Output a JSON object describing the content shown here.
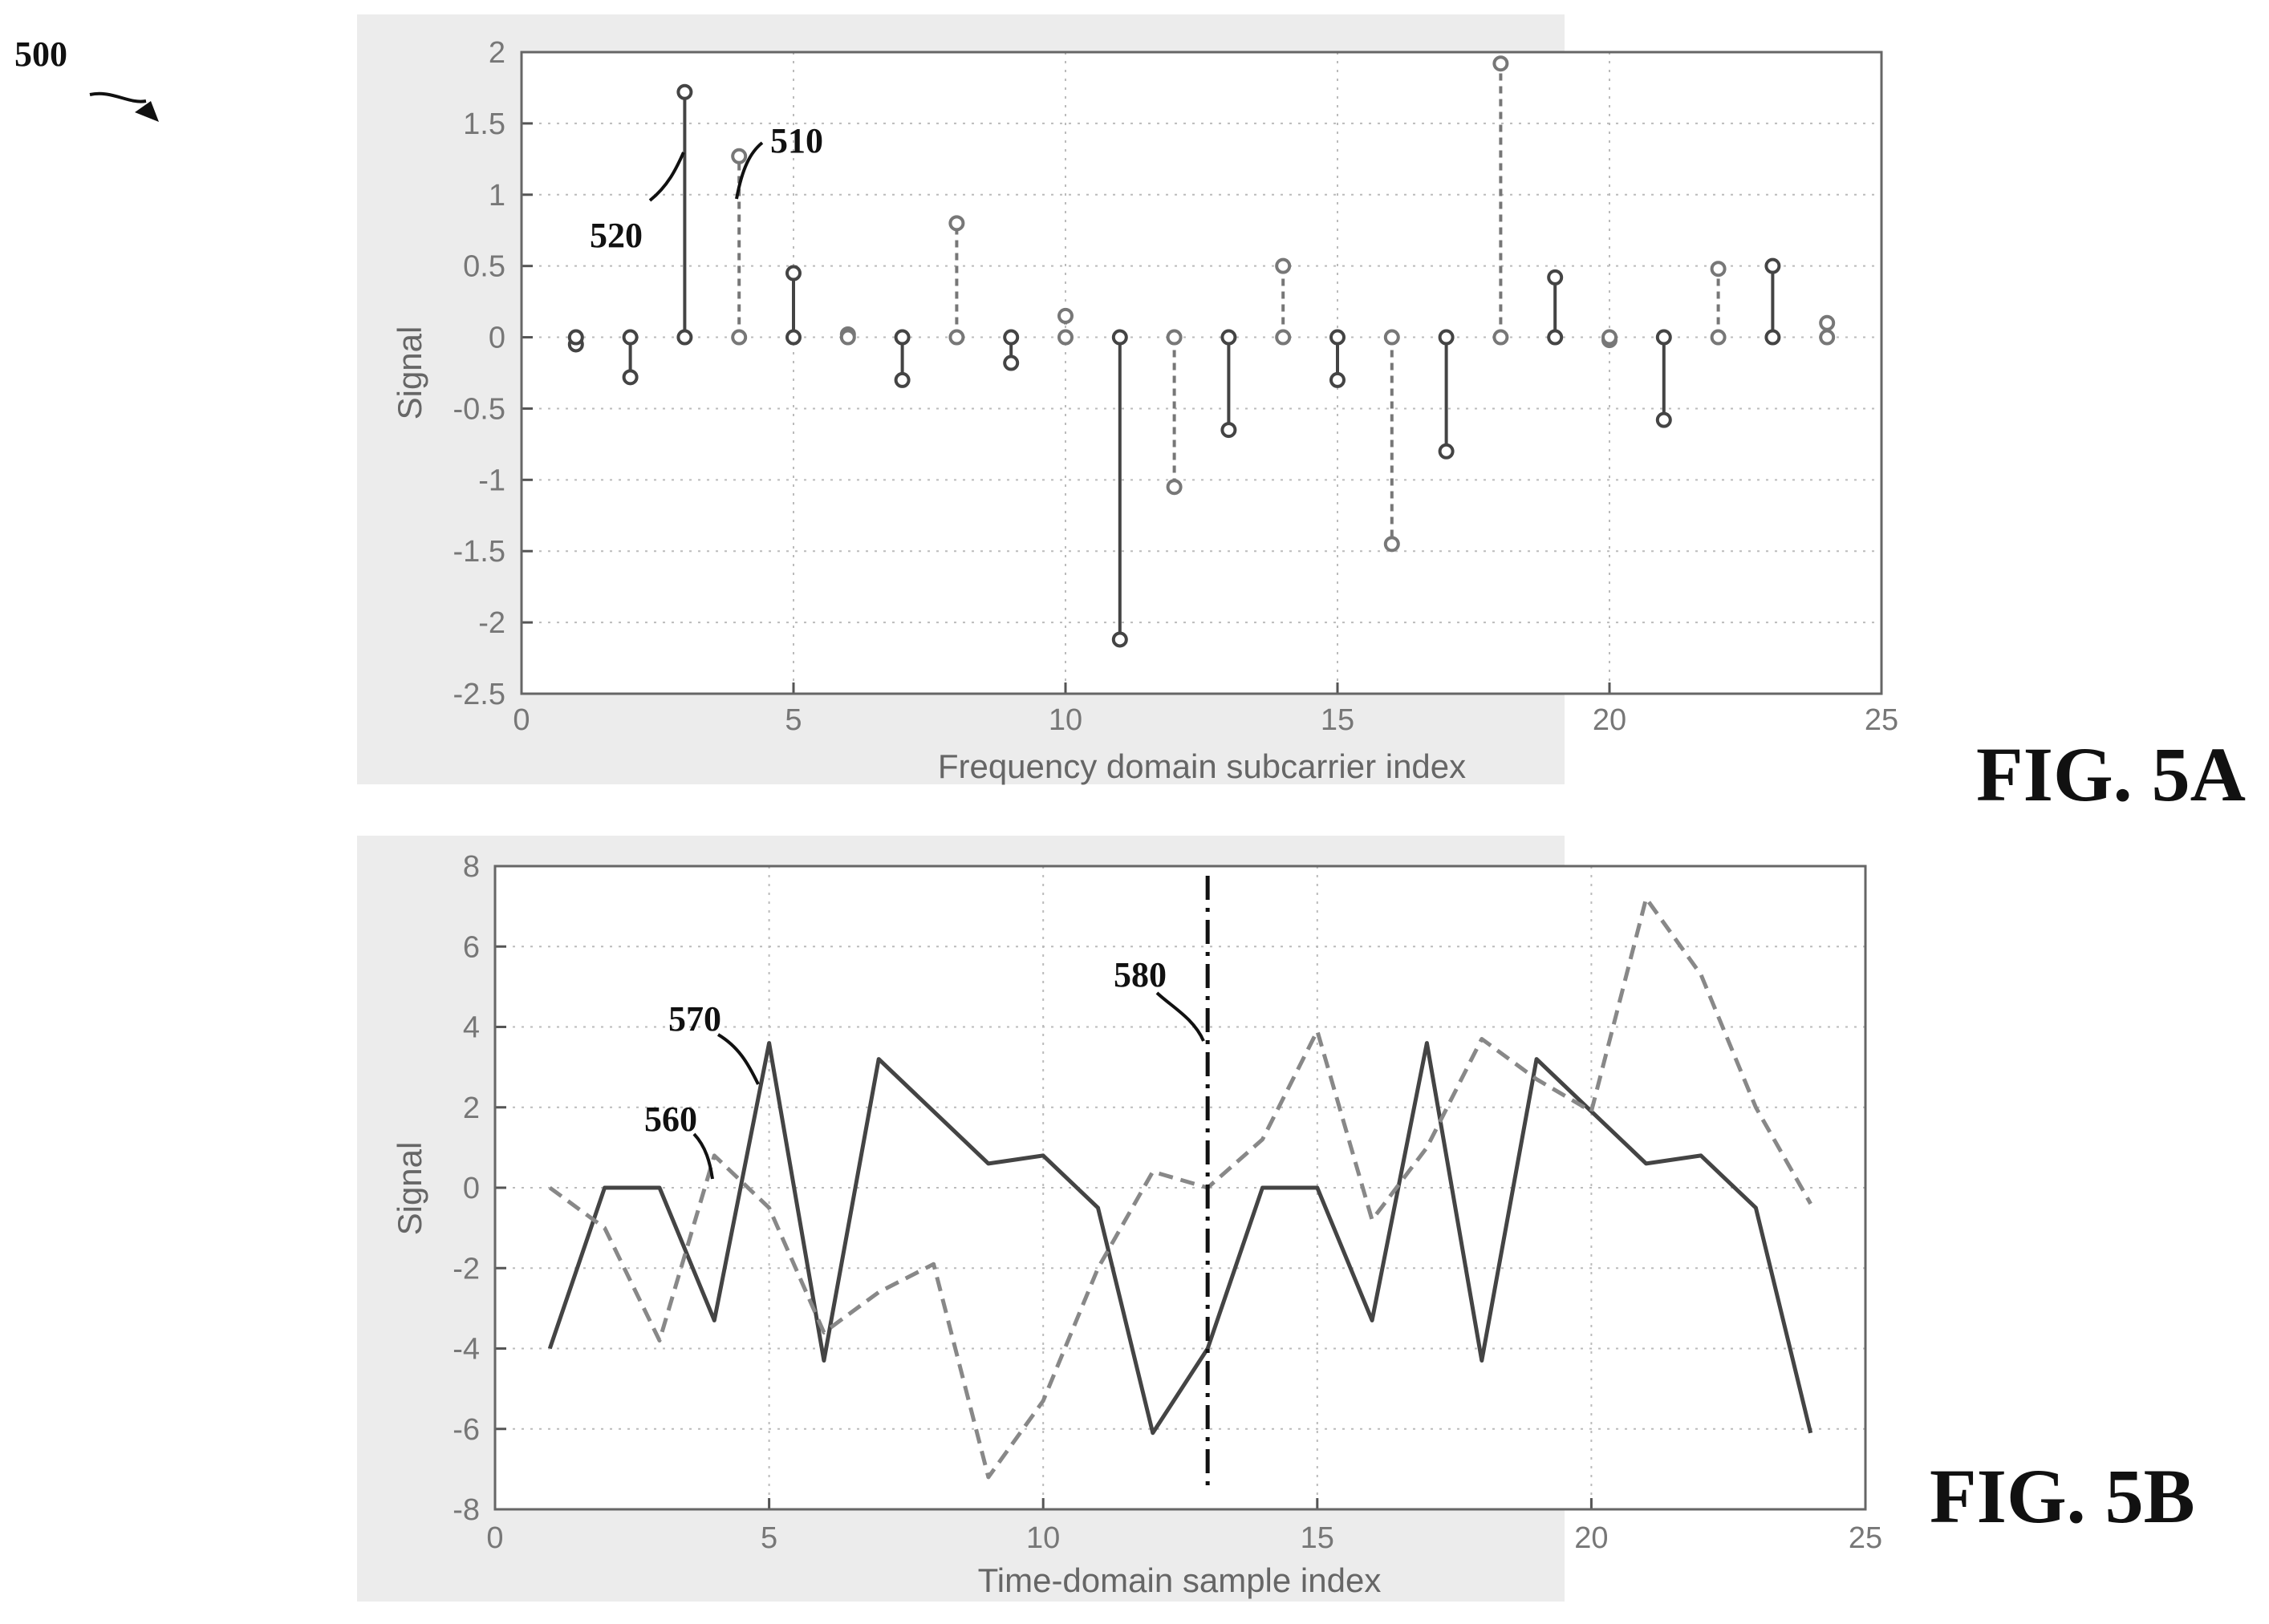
{
  "figure_ref": "500",
  "chart_data": [
    {
      "type": "stem",
      "fig_label": "FIG. 5A",
      "xlabel": "Frequency domain subcarrier index",
      "ylabel": "Signal",
      "xlim": [
        0,
        25
      ],
      "ylim": [
        -2.5,
        2
      ],
      "xticks": [
        "0",
        "5",
        "10",
        "15",
        "20",
        "25"
      ],
      "yticks": [
        "2",
        "1.5",
        "1",
        "0.5",
        "0",
        "-0.5",
        "-1",
        "-1.5",
        "-2",
        "-2.5"
      ],
      "grid": true,
      "series": [
        {
          "ref": "520",
          "points": [
            [
              1,
              -0.05
            ],
            [
              2,
              -0.28
            ],
            [
              3,
              1.72
            ],
            [
              5,
              0.45
            ],
            [
              7,
              -0.3
            ],
            [
              9,
              -0.18
            ],
            [
              11,
              -2.12
            ],
            [
              13,
              -0.65
            ],
            [
              15,
              -0.3
            ],
            [
              17,
              -0.8
            ],
            [
              19,
              0.42
            ],
            [
              21,
              -0.58
            ],
            [
              23,
              0.5
            ]
          ]
        },
        {
          "ref": "510",
          "points": [
            [
              4,
              1.27
            ],
            [
              6,
              0.02
            ],
            [
              8,
              0.8
            ],
            [
              10,
              0.15
            ],
            [
              12,
              -1.05
            ],
            [
              14,
              0.5
            ],
            [
              16,
              -1.45
            ],
            [
              18,
              1.92
            ],
            [
              20,
              -0.02
            ],
            [
              22,
              0.48
            ],
            [
              24,
              0.1
            ]
          ]
        }
      ],
      "annotations": [
        {
          "text": "520",
          "series": 0
        },
        {
          "text": "510",
          "series": 1
        }
      ]
    },
    {
      "type": "line",
      "fig_label": "FIG. 5B",
      "xlabel": "Time-domain sample index",
      "ylabel": "Signal",
      "xlim": [
        0,
        25
      ],
      "ylim": [
        -8,
        8
      ],
      "xticks": [
        "0",
        "5",
        "10",
        "15",
        "20",
        "25"
      ],
      "yticks": [
        "8",
        "6",
        "4",
        "2",
        "0",
        "-2",
        "-4",
        "-6",
        "-8"
      ],
      "grid": true,
      "x": [
        1,
        2,
        3,
        4,
        5,
        6,
        7,
        8,
        9,
        10,
        11,
        12,
        13,
        14,
        15,
        16,
        17,
        18,
        19,
        20,
        21,
        22,
        23,
        24
      ],
      "series": [
        {
          "ref": "570",
          "values": [
            -4,
            0,
            0,
            -3.3,
            3.6,
            -4.3,
            3.2,
            1.9,
            0.6,
            0.8,
            -0.5,
            -6.1,
            -4,
            0,
            0,
            -3.3,
            3.6,
            -4.3,
            3.2,
            1.9,
            0.6,
            0.8,
            -0.5,
            -6.1
          ]
        },
        {
          "ref": "560",
          "values": [
            0,
            -1,
            -3.8,
            0.8,
            -0.5,
            -3.6,
            -2.6,
            -1.9,
            -7.2,
            -5.3,
            -2,
            0.4,
            0,
            1.2,
            3.9,
            -0.8,
            1,
            3.7,
            2.7,
            1.9,
            7.2,
            5.3,
            2,
            -0.4
          ]
        }
      ],
      "vline": {
        "x": 13,
        "ref": "580"
      },
      "annotations": [
        {
          "text": "570",
          "series": 0
        },
        {
          "text": "560",
          "series": 1
        },
        {
          "text": "580",
          "series": "vline"
        }
      ]
    }
  ]
}
